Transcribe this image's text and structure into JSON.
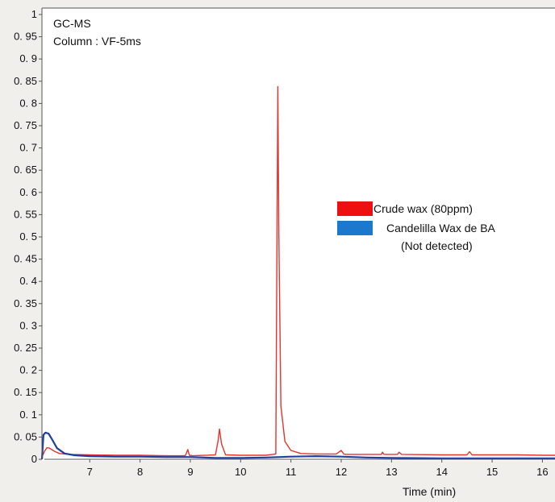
{
  "chart_data": {
    "type": "line",
    "annotation_lines": [
      "GC-MS",
      "Column : VF-5ms"
    ],
    "xlabel": "Time (min)",
    "ylabel": "",
    "xlim": [
      6.05,
      16.25
    ],
    "ylim": [
      0,
      1
    ],
    "x_ticks": [
      7,
      8,
      9,
      10,
      11,
      12,
      13,
      14,
      15,
      16
    ],
    "x_tick_labels": [
      "7",
      "8",
      "9",
      "10",
      "11",
      "12",
      "13",
      "14",
      "15",
      "16"
    ],
    "y_ticks": [
      0,
      0.05,
      0.1,
      0.15,
      0.2,
      0.25,
      0.3,
      0.35,
      0.4,
      0.45,
      0.5,
      0.55,
      0.6,
      0.65,
      0.7,
      0.75,
      0.8,
      0.85,
      0.9,
      0.95,
      1
    ],
    "y_tick_labels": [
      "0",
      "0. 05",
      "0. 1",
      "0. 15",
      "0. 2",
      "0. 25",
      "0. 3",
      "0. 35",
      "0. 4",
      "0. 45",
      "0. 5",
      "0. 55",
      "0. 6",
      "0. 65",
      "0. 7",
      "0. 75",
      "0. 8",
      "0. 85",
      "0. 9",
      "0. 95",
      "1"
    ],
    "grid": false,
    "legend_position": "center-right",
    "series": [
      {
        "name": "Crude wax (80ppm)",
        "color": "#e8322d",
        "swatch_color": "#ee0f10",
        "x": [
          6.05,
          6.1,
          6.15,
          6.2,
          6.3,
          6.4,
          6.6,
          7.0,
          7.5,
          8.0,
          8.5,
          8.9,
          8.95,
          8.98,
          9.05,
          9.5,
          9.55,
          9.58,
          9.62,
          9.7,
          10.0,
          10.5,
          10.7,
          10.74,
          10.76,
          10.8,
          10.88,
          11.0,
          11.2,
          11.5,
          11.9,
          12.0,
          12.05,
          12.1,
          12.5,
          12.8,
          12.82,
          12.85,
          13.12,
          13.15,
          13.2,
          14.0,
          14.5,
          14.55,
          14.6,
          15.0,
          15.5,
          16.0,
          16.25
        ],
        "y": [
          0.005,
          0.018,
          0.026,
          0.025,
          0.018,
          0.013,
          0.011,
          0.01,
          0.009,
          0.009,
          0.008,
          0.008,
          0.022,
          0.009,
          0.008,
          0.01,
          0.04,
          0.068,
          0.035,
          0.01,
          0.009,
          0.009,
          0.012,
          0.838,
          0.5,
          0.12,
          0.04,
          0.02,
          0.013,
          0.012,
          0.012,
          0.02,
          0.012,
          0.011,
          0.011,
          0.011,
          0.016,
          0.011,
          0.011,
          0.016,
          0.011,
          0.01,
          0.01,
          0.017,
          0.01,
          0.01,
          0.01,
          0.009,
          0.009
        ]
      },
      {
        "name": "Candelilla Wax de BA",
        "name_note": "(Not detected)",
        "color": "#1f3fa0",
        "swatch_color": "#1b78cc",
        "x": [
          6.05,
          6.08,
          6.12,
          6.18,
          6.25,
          6.35,
          6.5,
          6.7,
          7.0,
          7.5,
          8.0,
          8.5,
          9.0,
          9.5,
          10.0,
          10.5,
          11.0,
          11.5,
          12.0,
          12.5,
          13.0,
          14.0,
          15.0,
          16.0,
          16.25
        ],
        "y": [
          0.0,
          0.055,
          0.06,
          0.058,
          0.045,
          0.025,
          0.013,
          0.009,
          0.007,
          0.006,
          0.006,
          0.005,
          0.005,
          0.003,
          0.003,
          0.004,
          0.006,
          0.007,
          0.006,
          0.004,
          0.003,
          0.002,
          0.002,
          0.002,
          0.002
        ]
      }
    ]
  }
}
